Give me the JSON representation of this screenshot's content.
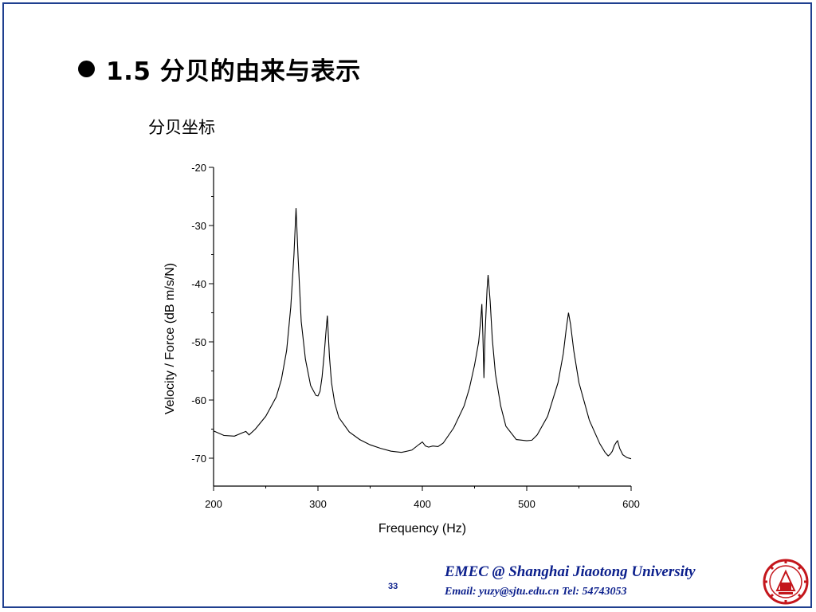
{
  "slide": {
    "title": "1.5 分贝的由来与表示",
    "subtitle": "分贝坐标",
    "page_number": "33"
  },
  "footer": {
    "main": "EMEC  @  Shanghai Jiaotong University",
    "contact": "Email: yuzy@sjtu.edu.cn  Tel: 54743053"
  },
  "colors": {
    "frame": "#1f3f8f",
    "footer_text": "#0b1f8c",
    "logo": "#c4161c"
  },
  "icons": {
    "bullet": "filled-circle-bullet-icon",
    "logo": "university-seal-logo-icon"
  },
  "chart_data": {
    "type": "line",
    "title": "",
    "xlabel": "Frequency (Hz)",
    "ylabel": "Velocity / Force  (dB m/s/N)",
    "xlim": [
      200,
      600
    ],
    "ylim": [
      -75,
      -20
    ],
    "xticks": [
      200,
      300,
      400,
      500,
      600
    ],
    "yticks": [
      -20,
      -30,
      -40,
      -50,
      -60,
      -70
    ],
    "grid": false,
    "legend": "none",
    "series": [
      {
        "x": [
          200,
          210,
          220,
          228,
          231,
          234,
          240,
          250,
          260,
          265,
          270,
          274,
          277,
          279,
          281,
          284,
          288,
          293,
          298,
          300,
          302,
          304,
          306,
          308,
          309,
          311,
          313,
          316,
          320,
          330,
          340,
          350,
          360,
          370,
          380,
          390,
          397,
          400,
          403,
          406,
          410,
          415,
          420,
          430,
          440,
          445,
          450,
          454,
          456,
          457,
          458,
          459,
          460,
          462,
          463,
          465,
          467,
          470,
          475,
          480,
          490,
          500,
          505,
          510,
          520,
          530,
          535,
          538,
          540,
          542,
          545,
          550,
          560,
          570,
          575,
          578,
          580,
          582,
          584,
          586,
          587,
          589,
          592,
          596,
          600
        ],
        "y": [
          -65.3,
          -66.1,
          -66.2,
          -65.6,
          -65.4,
          -66.0,
          -65.0,
          -62.8,
          -59.5,
          -56.5,
          -51.5,
          -44.0,
          -35.0,
          -27.0,
          -35.5,
          -46.5,
          -53.0,
          -57.5,
          -59.2,
          -59.3,
          -58.5,
          -56.0,
          -52.0,
          -47.5,
          -45.5,
          -52.5,
          -57.0,
          -60.5,
          -63.0,
          -65.5,
          -66.8,
          -67.7,
          -68.3,
          -68.8,
          -69.0,
          -68.6,
          -67.6,
          -67.2,
          -67.9,
          -68.1,
          -67.9,
          -68.0,
          -67.4,
          -64.8,
          -61.0,
          -58.0,
          -54.0,
          -50.0,
          -46.0,
          -43.5,
          -49.0,
          -56.2,
          -49.0,
          -41.0,
          -38.5,
          -43.0,
          -49.5,
          -55.5,
          -61.0,
          -64.5,
          -66.8,
          -67.0,
          -66.9,
          -66.0,
          -62.8,
          -57.0,
          -52.0,
          -47.5,
          -45.0,
          -47.0,
          -51.5,
          -57.0,
          -63.5,
          -67.5,
          -69.0,
          -69.6,
          -69.3,
          -68.8,
          -67.8,
          -67.2,
          -67.0,
          -68.3,
          -69.4,
          -69.9,
          -70.1
        ]
      }
    ]
  }
}
